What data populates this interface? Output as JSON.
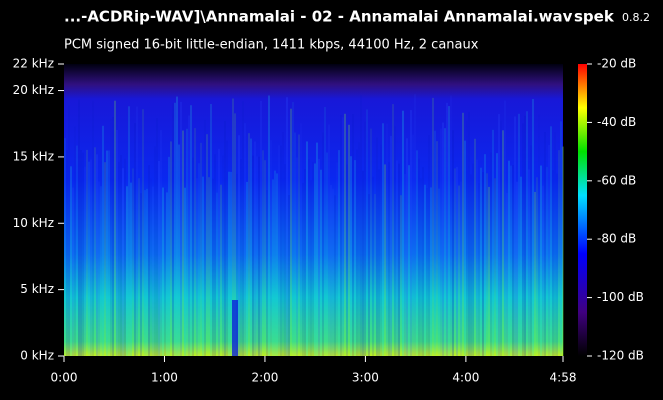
{
  "chart_data": {
    "type": "spectrogram",
    "title": "...-ACDRip-WAV]\\Annamalai - 02 - Annamalai Annamalai.wav",
    "app_name": "spek",
    "app_version": "0.8.2",
    "subtitle": "PCM signed 16-bit little-endian, 1411 kbps, 44100 Hz, 2 canaux",
    "xlim": [
      0,
      298
    ],
    "xticks": [
      {
        "value": 0,
        "label": "0:00"
      },
      {
        "value": 60,
        "label": "1:00"
      },
      {
        "value": 120,
        "label": "2:00"
      },
      {
        "value": 180,
        "label": "3:00"
      },
      {
        "value": 240,
        "label": "4:00"
      },
      {
        "value": 298,
        "label": "4:58"
      }
    ],
    "ylim": [
      0,
      22
    ],
    "yticks": [
      {
        "value": 0,
        "label": "0 kHz"
      },
      {
        "value": 5,
        "label": "5 kHz"
      },
      {
        "value": 10,
        "label": "10 kHz"
      },
      {
        "value": 15,
        "label": "15 kHz"
      },
      {
        "value": 20,
        "label": "20 kHz"
      },
      {
        "value": 22,
        "label": "22 kHz"
      }
    ],
    "clim": [
      -120,
      -20
    ],
    "cticks": [
      {
        "value": -20,
        "label": "-20 dB"
      },
      {
        "value": -40,
        "label": "-40 dB"
      },
      {
        "value": -60,
        "label": "-60 dB"
      },
      {
        "value": -80,
        "label": "-80 dB"
      },
      {
        "value": -100,
        "label": "-100 dB"
      },
      {
        "value": -120,
        "label": "-120 dB"
      }
    ]
  }
}
